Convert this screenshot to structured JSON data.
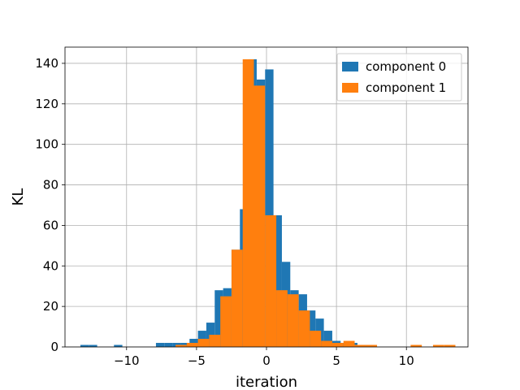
{
  "chart_data": {
    "type": "histogram",
    "xlabel": "iteration",
    "ylabel": "KL",
    "xlim": [
      -14.4,
      14.4
    ],
    "ylim": [
      0,
      148
    ],
    "xticks": [
      -10,
      -5,
      0,
      5,
      10
    ],
    "yticks": [
      0,
      20,
      40,
      60,
      80,
      100,
      120,
      140
    ],
    "grid": true,
    "legend_position": "top-right",
    "series": [
      {
        "name": "component 0",
        "color": "#1f77b4",
        "bin_edges": [
          -13.3,
          -12.7,
          -12.1,
          -11.5,
          -10.9,
          -10.3,
          -9.7,
          -9.1,
          -8.5,
          -7.9,
          -7.3,
          -6.7,
          -6.1,
          -5.5,
          -4.9,
          -4.3,
          -3.7,
          -3.1,
          -2.5,
          -1.9,
          -1.3,
          -0.7,
          -0.1,
          0.5,
          1.1,
          1.7,
          2.3,
          2.9,
          3.5,
          4.1,
          4.7,
          5.3,
          5.9,
          6.5,
          7.1,
          7.7,
          8.3,
          8.9,
          9.5,
          10.1,
          10.7,
          11.3,
          11.9,
          12.5,
          13.1
        ],
        "counts": [
          1,
          1,
          0,
          0,
          1,
          0,
          0,
          0,
          0,
          2,
          2,
          2,
          2,
          4,
          8,
          12,
          28,
          29,
          48,
          68,
          142,
          132,
          137,
          65,
          42,
          28,
          26,
          18,
          14,
          8,
          3,
          2,
          2,
          1,
          1,
          0,
          0,
          0,
          0,
          0,
          0,
          0,
          0,
          0
        ]
      },
      {
        "name": "component 1",
        "color": "#ff7f0e",
        "bin_edges": [
          -6.5,
          -5.7,
          -4.9,
          -4.1,
          -3.3,
          -2.5,
          -1.7,
          -0.9,
          -0.1,
          0.7,
          1.5,
          2.3,
          3.1,
          3.9,
          4.7,
          5.5,
          6.3,
          7.1,
          7.9,
          8.7,
          9.5,
          10.3,
          11.1,
          11.9,
          12.7,
          13.5
        ],
        "counts": [
          1,
          2,
          4,
          6,
          25,
          48,
          142,
          129,
          65,
          28,
          26,
          18,
          8,
          3,
          2,
          3,
          1,
          1,
          0,
          0,
          0,
          1,
          0,
          1,
          1
        ]
      }
    ]
  }
}
